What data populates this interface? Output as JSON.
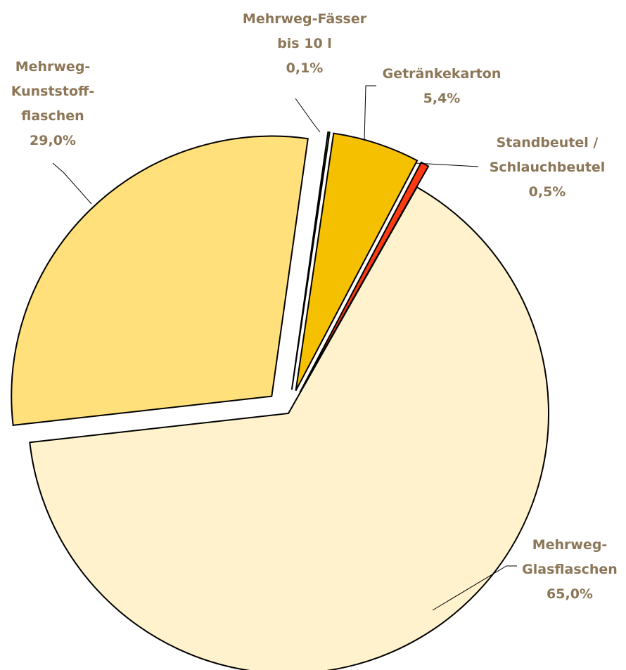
{
  "chart_data": {
    "type": "pie",
    "categories": [
      "Mehrweg-Fässer\nbis 10 l",
      "Getränkekarton",
      "Standbeutel /\nSchlauchbeutel",
      "Mehrweg-\nGlasflaschen",
      "Mehrweg-\nKunststoff-\nflaschen"
    ],
    "values": [
      0.1,
      5.4,
      0.5,
      65.0,
      29.0
    ],
    "value_labels": [
      "0,1%",
      "5,4%",
      "0,5%",
      "65,0%",
      "29,0%"
    ],
    "colors": [
      "#90ee90",
      "#f5c000",
      "#ff3a10",
      "#fff2cc",
      "#ffe07a"
    ],
    "exploded": [
      true,
      true,
      true,
      false,
      true
    ]
  }
}
